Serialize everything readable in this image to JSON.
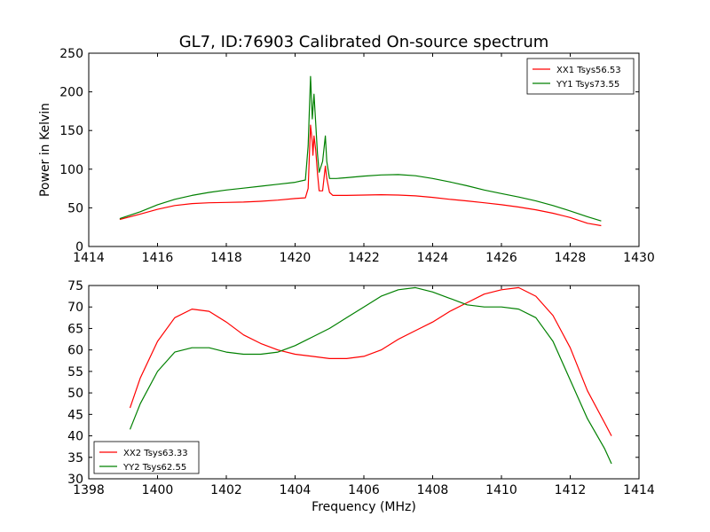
{
  "figure": {
    "title": "GL7, ID:76903 Calibrated On-source spectrum"
  },
  "chart_data": [
    {
      "type": "line",
      "title": "GL7, ID:76903 Calibrated On-source spectrum",
      "xlabel": "",
      "ylabel": "Power in Kelvin",
      "xlim": [
        1414,
        1430
      ],
      "ylim": [
        0,
        250
      ],
      "xticks": [
        1414,
        1416,
        1418,
        1420,
        1422,
        1424,
        1426,
        1428,
        1430
      ],
      "yticks": [
        0,
        50,
        100,
        150,
        200,
        250
      ],
      "grid": false,
      "legend_position": "top-right",
      "series": [
        {
          "name": "XX1 Tsys56.53",
          "color": "#ff0000",
          "x": [
            1414.9,
            1415.5,
            1416,
            1416.5,
            1417,
            1417.5,
            1418,
            1418.5,
            1419,
            1419.5,
            1420,
            1420.3,
            1420.38,
            1420.45,
            1420.5,
            1420.52,
            1420.55,
            1420.6,
            1420.65,
            1420.7,
            1420.8,
            1420.88,
            1420.92,
            1421,
            1421.1,
            1421.5,
            1422,
            1422.5,
            1423,
            1423.5,
            1424,
            1424.5,
            1425,
            1425.5,
            1426,
            1426.5,
            1427,
            1427.5,
            1428,
            1428.5,
            1428.9
          ],
          "y": [
            35,
            42,
            48,
            53,
            55.5,
            56.5,
            57,
            57.5,
            58.5,
            60,
            62,
            63,
            75,
            157,
            135,
            118,
            143,
            125,
            95,
            72,
            72,
            104,
            88,
            70,
            66,
            66,
            66.5,
            67,
            66.5,
            65.5,
            63.5,
            61,
            59,
            56.5,
            54,
            51,
            47.5,
            43,
            37.5,
            30,
            27
          ]
        },
        {
          "name": "YY1 Tsys73.55",
          "color": "#008000",
          "x": [
            1414.9,
            1415.5,
            1416,
            1416.5,
            1417,
            1417.5,
            1418,
            1418.5,
            1419,
            1419.5,
            1420,
            1420.3,
            1420.38,
            1420.45,
            1420.5,
            1420.55,
            1420.6,
            1420.65,
            1420.7,
            1420.8,
            1420.88,
            1420.92,
            1421,
            1421.2,
            1421.5,
            1422,
            1422.5,
            1423,
            1423.5,
            1424,
            1424.5,
            1425,
            1425.5,
            1426,
            1426.5,
            1427,
            1427.5,
            1428,
            1428.5,
            1428.9
          ],
          "y": [
            36,
            45,
            54,
            61,
            66,
            70,
            73,
            75.5,
            78,
            80.5,
            83,
            86,
            130,
            220,
            165,
            197,
            160,
            120,
            96,
            110,
            143,
            110,
            88,
            88,
            89,
            91,
            92.5,
            93,
            91.5,
            88,
            83.5,
            78.5,
            73,
            68.5,
            64,
            59,
            53,
            46,
            38.5,
            33
          ]
        }
      ]
    },
    {
      "type": "line",
      "title": "",
      "xlabel": "Frequency (MHz)",
      "ylabel": "",
      "xlim": [
        1398,
        1414
      ],
      "ylim": [
        30,
        75
      ],
      "xticks": [
        1398,
        1400,
        1402,
        1404,
        1406,
        1408,
        1410,
        1412,
        1414
      ],
      "yticks": [
        30,
        35,
        40,
        45,
        50,
        55,
        60,
        65,
        70,
        75
      ],
      "grid": false,
      "legend_position": "bottom-left",
      "series": [
        {
          "name": "XX2 Tsys63.33",
          "color": "#ff0000",
          "x": [
            1399.2,
            1399.5,
            1400,
            1400.5,
            1401,
            1401.5,
            1402,
            1402.5,
            1403,
            1403.5,
            1404,
            1404.5,
            1405,
            1405.5,
            1406,
            1406.5,
            1407,
            1407.5,
            1408,
            1408.5,
            1409,
            1409.5,
            1410,
            1410.5,
            1411,
            1411.5,
            1412,
            1412.5,
            1413,
            1413.2
          ],
          "y": [
            46.5,
            53.5,
            62,
            67.5,
            69.5,
            69,
            66.5,
            63.5,
            61.5,
            60,
            59,
            58.5,
            58,
            58,
            58.5,
            60,
            62.5,
            64.5,
            66.5,
            69,
            71,
            73,
            74,
            74.5,
            72.5,
            68,
            60.5,
            50.5,
            43,
            40
          ]
        },
        {
          "name": "YY2 Tsys62.55",
          "color": "#008000",
          "x": [
            1399.2,
            1399.5,
            1400,
            1400.5,
            1401,
            1401.5,
            1402,
            1402.5,
            1403,
            1403.5,
            1404,
            1404.5,
            1405,
            1405.5,
            1406,
            1406.5,
            1407,
            1407.5,
            1408,
            1408.5,
            1409,
            1409.5,
            1410,
            1410.5,
            1411,
            1411.5,
            1412,
            1412.5,
            1413,
            1413.2
          ],
          "y": [
            41.5,
            47.5,
            55,
            59.5,
            60.5,
            60.5,
            59.5,
            59,
            59,
            59.5,
            61,
            63,
            65,
            67.5,
            70,
            72.5,
            74,
            74.5,
            73.5,
            72,
            70.5,
            70,
            70,
            69.5,
            67.5,
            62,
            53,
            44,
            37,
            33.5
          ]
        }
      ]
    }
  ]
}
